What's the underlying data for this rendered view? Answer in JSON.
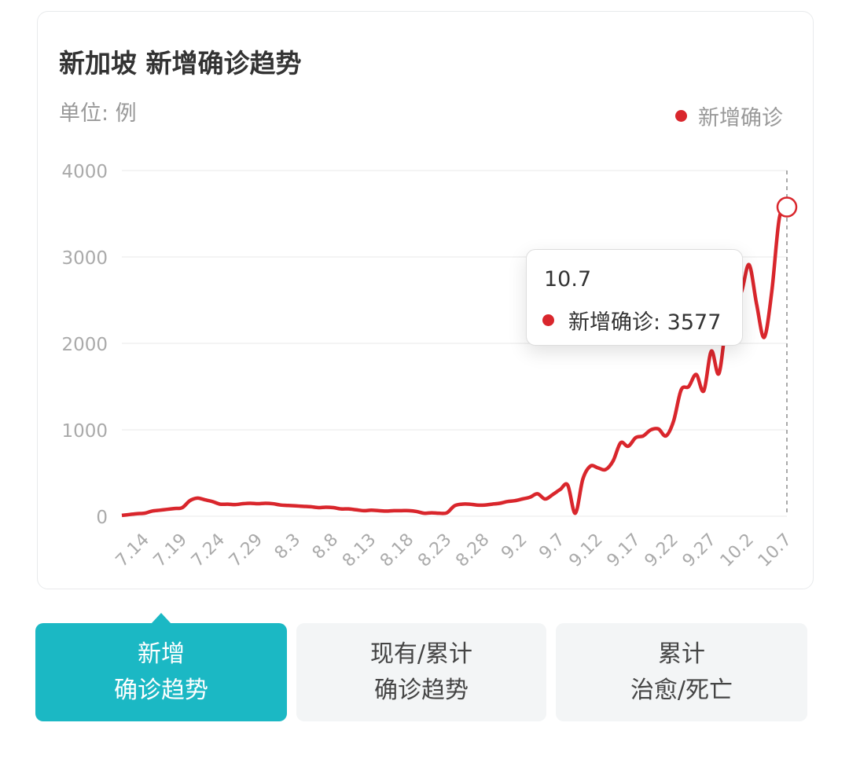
{
  "colors": {
    "series": "#d9262c",
    "accent": "#1bb8c4",
    "grid": "#f0f0f0",
    "axis_text": "#aaaaaa"
  },
  "header": {
    "title": "新加坡 新增确诊趋势",
    "unit": "单位: 例"
  },
  "tooltip": {
    "date": "10.7",
    "label": "新增确诊: 3577"
  },
  "tabs": [
    {
      "line1": "新增",
      "line2": "确诊趋势",
      "active": true
    },
    {
      "line1": "现有/累计",
      "line2": "确诊趋势",
      "active": false
    },
    {
      "line1": "累计",
      "line2": "治愈/死亡",
      "active": false
    }
  ],
  "chart_data": {
    "type": "line",
    "title": "新加坡 新增确诊趋势",
    "ylabel": "单位: 例",
    "ylim": [
      0,
      4000
    ],
    "yticks": [
      "0",
      "1000",
      "2000",
      "3000",
      "4000"
    ],
    "xticks": [
      "7.14",
      "7.19",
      "7.24",
      "7.29",
      "8.3",
      "8.8",
      "8.13",
      "8.18",
      "8.23",
      "8.28",
      "9.2",
      "9.7",
      "9.12",
      "9.17",
      "9.22",
      "9.27",
      "10.2",
      "10.7"
    ],
    "grid": true,
    "legend": "top-right",
    "x": [
      "7.11",
      "7.12",
      "7.13",
      "7.14",
      "7.15",
      "7.16",
      "7.17",
      "7.18",
      "7.19",
      "7.20",
      "7.21",
      "7.22",
      "7.23",
      "7.24",
      "7.25",
      "7.26",
      "7.27",
      "7.28",
      "7.29",
      "7.30",
      "7.31",
      "8.1",
      "8.2",
      "8.3",
      "8.4",
      "8.5",
      "8.6",
      "8.7",
      "8.8",
      "8.9",
      "8.10",
      "8.11",
      "8.12",
      "8.13",
      "8.14",
      "8.15",
      "8.16",
      "8.17",
      "8.18",
      "8.19",
      "8.20",
      "8.21",
      "8.22",
      "8.23",
      "8.24",
      "8.25",
      "8.26",
      "8.27",
      "8.28",
      "8.29",
      "8.30",
      "8.31",
      "9.1",
      "9.2",
      "9.3",
      "9.4",
      "9.5",
      "9.6",
      "9.7",
      "9.8",
      "9.9",
      "9.10",
      "9.11",
      "9.12",
      "9.13",
      "9.14",
      "9.15",
      "9.16",
      "9.17",
      "9.18",
      "9.19",
      "9.20",
      "9.21",
      "9.22",
      "9.23",
      "9.24",
      "9.25",
      "9.26",
      "9.27",
      "9.28",
      "9.29",
      "9.30",
      "10.1",
      "10.2",
      "10.3",
      "10.4",
      "10.5",
      "10.6",
      "10.7"
    ],
    "series": [
      {
        "name": "新增确诊",
        "values": [
          10,
          20,
          30,
          35,
          60,
          70,
          80,
          90,
          100,
          180,
          210,
          190,
          170,
          140,
          140,
          135,
          145,
          150,
          145,
          150,
          145,
          130,
          125,
          120,
          115,
          110,
          100,
          105,
          100,
          85,
          85,
          75,
          65,
          70,
          65,
          60,
          65,
          65,
          65,
          55,
          35,
          40,
          35,
          40,
          120,
          140,
          140,
          130,
          130,
          140,
          150,
          170,
          180,
          200,
          220,
          260,
          200,
          250,
          310,
          360,
          35,
          430,
          580,
          560,
          540,
          640,
          850,
          810,
          910,
          930,
          1000,
          1010,
          930,
          1100,
          1460,
          1500,
          1640,
          1450,
          1910,
          1650,
          2240,
          2480,
          2600,
          2910,
          2450,
          2070,
          2600,
          3450,
          3577
        ]
      }
    ],
    "highlighted": {
      "x": "10.7",
      "value": 3577
    }
  }
}
